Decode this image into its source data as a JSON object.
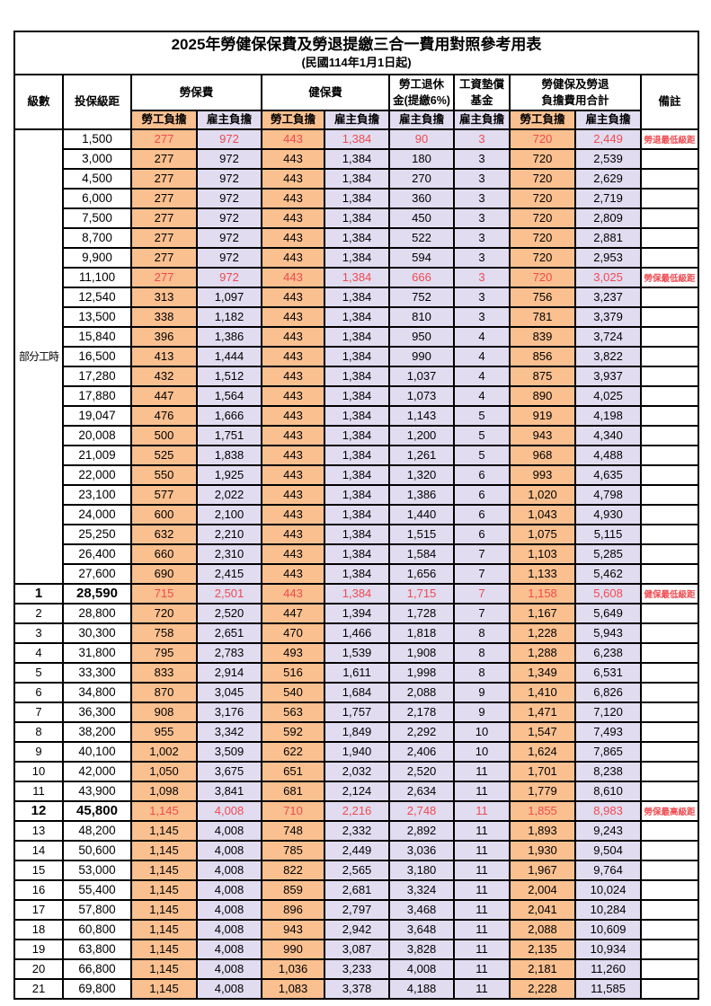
{
  "title": "2025年勞健保保費及勞退提繳三合一費用對照參考用表",
  "subtitle": "(民國114年1月1日起)",
  "colors": {
    "employee_fill_orange": "#FAC090",
    "employer_fill_lavender": "#E1DCF0",
    "highlight_red": "#EF4A4F",
    "border_black": "#000000"
  },
  "header": {
    "level": "級數",
    "bracket": "投保級距",
    "labor_insurance": "勞保費",
    "health_insurance": "健保費",
    "pension_line1": "勞工退休",
    "pension_line2": "金(提繳6%)",
    "wage_fund_line1": "工資墊償",
    "wage_fund_line2": "基金",
    "total_line1": "勞健保及勞退",
    "total_line2": "負擔費用合計",
    "remark": "備註",
    "employee": "勞工負擔",
    "employer": "雇主負擔"
  },
  "part_time": {
    "label": "部分工時",
    "rows": [
      {
        "bracket": "1,500",
        "labor_emp": "277",
        "labor_er": "972",
        "health_emp": "443",
        "health_er": "1,384",
        "pension_er": "90",
        "fund_er": "3",
        "total_emp": "720",
        "total_er": "2,449",
        "remark": "勞退最低級距",
        "red": true
      },
      {
        "bracket": "3,000",
        "labor_emp": "277",
        "labor_er": "972",
        "health_emp": "443",
        "health_er": "1,384",
        "pension_er": "180",
        "fund_er": "3",
        "total_emp": "720",
        "total_er": "2,539",
        "remark": ""
      },
      {
        "bracket": "4,500",
        "labor_emp": "277",
        "labor_er": "972",
        "health_emp": "443",
        "health_er": "1,384",
        "pension_er": "270",
        "fund_er": "3",
        "total_emp": "720",
        "total_er": "2,629",
        "remark": ""
      },
      {
        "bracket": "6,000",
        "labor_emp": "277",
        "labor_er": "972",
        "health_emp": "443",
        "health_er": "1,384",
        "pension_er": "360",
        "fund_er": "3",
        "total_emp": "720",
        "total_er": "2,719",
        "remark": ""
      },
      {
        "bracket": "7,500",
        "labor_emp": "277",
        "labor_er": "972",
        "health_emp": "443",
        "health_er": "1,384",
        "pension_er": "450",
        "fund_er": "3",
        "total_emp": "720",
        "total_er": "2,809",
        "remark": ""
      },
      {
        "bracket": "8,700",
        "labor_emp": "277",
        "labor_er": "972",
        "health_emp": "443",
        "health_er": "1,384",
        "pension_er": "522",
        "fund_er": "3",
        "total_emp": "720",
        "total_er": "2,881",
        "remark": ""
      },
      {
        "bracket": "9,900",
        "labor_emp": "277",
        "labor_er": "972",
        "health_emp": "443",
        "health_er": "1,384",
        "pension_er": "594",
        "fund_er": "3",
        "total_emp": "720",
        "total_er": "2,953",
        "remark": ""
      },
      {
        "bracket": "11,100",
        "labor_emp": "277",
        "labor_er": "972",
        "health_emp": "443",
        "health_er": "1,384",
        "pension_er": "666",
        "fund_er": "3",
        "total_emp": "720",
        "total_er": "3,025",
        "remark": "勞保最低級距",
        "red": true
      },
      {
        "bracket": "12,540",
        "labor_emp": "313",
        "labor_er": "1,097",
        "health_emp": "443",
        "health_er": "1,384",
        "pension_er": "752",
        "fund_er": "3",
        "total_emp": "756",
        "total_er": "3,237",
        "remark": ""
      },
      {
        "bracket": "13,500",
        "labor_emp": "338",
        "labor_er": "1,182",
        "health_emp": "443",
        "health_er": "1,384",
        "pension_er": "810",
        "fund_er": "3",
        "total_emp": "781",
        "total_er": "3,379",
        "remark": ""
      },
      {
        "bracket": "15,840",
        "labor_emp": "396",
        "labor_er": "1,386",
        "health_emp": "443",
        "health_er": "1,384",
        "pension_er": "950",
        "fund_er": "4",
        "total_emp": "839",
        "total_er": "3,724",
        "remark": ""
      },
      {
        "bracket": "16,500",
        "labor_emp": "413",
        "labor_er": "1,444",
        "health_emp": "443",
        "health_er": "1,384",
        "pension_er": "990",
        "fund_er": "4",
        "total_emp": "856",
        "total_er": "3,822",
        "remark": ""
      },
      {
        "bracket": "17,280",
        "labor_emp": "432",
        "labor_er": "1,512",
        "health_emp": "443",
        "health_er": "1,384",
        "pension_er": "1,037",
        "fund_er": "4",
        "total_emp": "875",
        "total_er": "3,937",
        "remark": ""
      },
      {
        "bracket": "17,880",
        "labor_emp": "447",
        "labor_er": "1,564",
        "health_emp": "443",
        "health_er": "1,384",
        "pension_er": "1,073",
        "fund_er": "4",
        "total_emp": "890",
        "total_er": "4,025",
        "remark": ""
      },
      {
        "bracket": "19,047",
        "labor_emp": "476",
        "labor_er": "1,666",
        "health_emp": "443",
        "health_er": "1,384",
        "pension_er": "1,143",
        "fund_er": "5",
        "total_emp": "919",
        "total_er": "4,198",
        "remark": ""
      },
      {
        "bracket": "20,008",
        "labor_emp": "500",
        "labor_er": "1,751",
        "health_emp": "443",
        "health_er": "1,384",
        "pension_er": "1,200",
        "fund_er": "5",
        "total_emp": "943",
        "total_er": "4,340",
        "remark": ""
      },
      {
        "bracket": "21,009",
        "labor_emp": "525",
        "labor_er": "1,838",
        "health_emp": "443",
        "health_er": "1,384",
        "pension_er": "1,261",
        "fund_er": "5",
        "total_emp": "968",
        "total_er": "4,488",
        "remark": ""
      },
      {
        "bracket": "22,000",
        "labor_emp": "550",
        "labor_er": "1,925",
        "health_emp": "443",
        "health_er": "1,384",
        "pension_er": "1,320",
        "fund_er": "6",
        "total_emp": "993",
        "total_er": "4,635",
        "remark": ""
      },
      {
        "bracket": "23,100",
        "labor_emp": "577",
        "labor_er": "2,022",
        "health_emp": "443",
        "health_er": "1,384",
        "pension_er": "1,386",
        "fund_er": "6",
        "total_emp": "1,020",
        "total_er": "4,798",
        "remark": ""
      },
      {
        "bracket": "24,000",
        "labor_emp": "600",
        "labor_er": "2,100",
        "health_emp": "443",
        "health_er": "1,384",
        "pension_er": "1,440",
        "fund_er": "6",
        "total_emp": "1,043",
        "total_er": "4,930",
        "remark": ""
      },
      {
        "bracket": "25,250",
        "labor_emp": "632",
        "labor_er": "2,210",
        "health_emp": "443",
        "health_er": "1,384",
        "pension_er": "1,515",
        "fund_er": "6",
        "total_emp": "1,075",
        "total_er": "5,115",
        "remark": ""
      },
      {
        "bracket": "26,400",
        "labor_emp": "660",
        "labor_er": "2,310",
        "health_emp": "443",
        "health_er": "1,384",
        "pension_er": "1,584",
        "fund_er": "7",
        "total_emp": "1,103",
        "total_er": "5,285",
        "remark": ""
      },
      {
        "bracket": "27,600",
        "labor_emp": "690",
        "labor_er": "2,415",
        "health_emp": "443",
        "health_er": "1,384",
        "pension_er": "1,656",
        "fund_er": "7",
        "total_emp": "1,133",
        "total_er": "5,462",
        "remark": ""
      }
    ]
  },
  "numbered": {
    "rows": [
      {
        "level": "1",
        "bracket": "28,590",
        "labor_emp": "715",
        "labor_er": "2,501",
        "health_emp": "443",
        "health_er": "1,384",
        "pension_er": "1,715",
        "fund_er": "7",
        "total_emp": "1,158",
        "total_er": "5,608",
        "remark": "健保最低級距",
        "red": true,
        "em": true
      },
      {
        "level": "2",
        "bracket": "28,800",
        "labor_emp": "720",
        "labor_er": "2,520",
        "health_emp": "447",
        "health_er": "1,394",
        "pension_er": "1,728",
        "fund_er": "7",
        "total_emp": "1,167",
        "total_er": "5,649",
        "remark": ""
      },
      {
        "level": "3",
        "bracket": "30,300",
        "labor_emp": "758",
        "labor_er": "2,651",
        "health_emp": "470",
        "health_er": "1,466",
        "pension_er": "1,818",
        "fund_er": "8",
        "total_emp": "1,228",
        "total_er": "5,943",
        "remark": ""
      },
      {
        "level": "4",
        "bracket": "31,800",
        "labor_emp": "795",
        "labor_er": "2,783",
        "health_emp": "493",
        "health_er": "1,539",
        "pension_er": "1,908",
        "fund_er": "8",
        "total_emp": "1,288",
        "total_er": "6,238",
        "remark": ""
      },
      {
        "level": "5",
        "bracket": "33,300",
        "labor_emp": "833",
        "labor_er": "2,914",
        "health_emp": "516",
        "health_er": "1,611",
        "pension_er": "1,998",
        "fund_er": "8",
        "total_emp": "1,349",
        "total_er": "6,531",
        "remark": ""
      },
      {
        "level": "6",
        "bracket": "34,800",
        "labor_emp": "870",
        "labor_er": "3,045",
        "health_emp": "540",
        "health_er": "1,684",
        "pension_er": "2,088",
        "fund_er": "9",
        "total_emp": "1,410",
        "total_er": "6,826",
        "remark": ""
      },
      {
        "level": "7",
        "bracket": "36,300",
        "labor_emp": "908",
        "labor_er": "3,176",
        "health_emp": "563",
        "health_er": "1,757",
        "pension_er": "2,178",
        "fund_er": "9",
        "total_emp": "1,471",
        "total_er": "7,120",
        "remark": ""
      },
      {
        "level": "8",
        "bracket": "38,200",
        "labor_emp": "955",
        "labor_er": "3,342",
        "health_emp": "592",
        "health_er": "1,849",
        "pension_er": "2,292",
        "fund_er": "10",
        "total_emp": "1,547",
        "total_er": "7,493",
        "remark": ""
      },
      {
        "level": "9",
        "bracket": "40,100",
        "labor_emp": "1,002",
        "labor_er": "3,509",
        "health_emp": "622",
        "health_er": "1,940",
        "pension_er": "2,406",
        "fund_er": "10",
        "total_emp": "1,624",
        "total_er": "7,865",
        "remark": ""
      },
      {
        "level": "10",
        "bracket": "42,000",
        "labor_emp": "1,050",
        "labor_er": "3,675",
        "health_emp": "651",
        "health_er": "2,032",
        "pension_er": "2,520",
        "fund_er": "11",
        "total_emp": "1,701",
        "total_er": "8,238",
        "remark": ""
      },
      {
        "level": "11",
        "bracket": "43,900",
        "labor_emp": "1,098",
        "labor_er": "3,841",
        "health_emp": "681",
        "health_er": "2,124",
        "pension_er": "2,634",
        "fund_er": "11",
        "total_emp": "1,779",
        "total_er": "8,610",
        "remark": ""
      },
      {
        "level": "12",
        "bracket": "45,800",
        "labor_emp": "1,145",
        "labor_er": "4,008",
        "health_emp": "710",
        "health_er": "2,216",
        "pension_er": "2,748",
        "fund_er": "11",
        "total_emp": "1,855",
        "total_er": "8,983",
        "remark": "勞保最高級距",
        "red": true,
        "em": true
      },
      {
        "level": "13",
        "bracket": "48,200",
        "labor_emp": "1,145",
        "labor_er": "4,008",
        "health_emp": "748",
        "health_er": "2,332",
        "pension_er": "2,892",
        "fund_er": "11",
        "total_emp": "1,893",
        "total_er": "9,243",
        "remark": ""
      },
      {
        "level": "14",
        "bracket": "50,600",
        "labor_emp": "1,145",
        "labor_er": "4,008",
        "health_emp": "785",
        "health_er": "2,449",
        "pension_er": "3,036",
        "fund_er": "11",
        "total_emp": "1,930",
        "total_er": "9,504",
        "remark": ""
      },
      {
        "level": "15",
        "bracket": "53,000",
        "labor_emp": "1,145",
        "labor_er": "4,008",
        "health_emp": "822",
        "health_er": "2,565",
        "pension_er": "3,180",
        "fund_er": "11",
        "total_emp": "1,967",
        "total_er": "9,764",
        "remark": ""
      },
      {
        "level": "16",
        "bracket": "55,400",
        "labor_emp": "1,145",
        "labor_er": "4,008",
        "health_emp": "859",
        "health_er": "2,681",
        "pension_er": "3,324",
        "fund_er": "11",
        "total_emp": "2,004",
        "total_er": "10,024",
        "remark": ""
      },
      {
        "level": "17",
        "bracket": "57,800",
        "labor_emp": "1,145",
        "labor_er": "4,008",
        "health_emp": "896",
        "health_er": "2,797",
        "pension_er": "3,468",
        "fund_er": "11",
        "total_emp": "2,041",
        "total_er": "10,284",
        "remark": ""
      },
      {
        "level": "18",
        "bracket": "60,800",
        "labor_emp": "1,145",
        "labor_er": "4,008",
        "health_emp": "943",
        "health_er": "2,942",
        "pension_er": "3,648",
        "fund_er": "11",
        "total_emp": "2,088",
        "total_er": "10,609",
        "remark": ""
      },
      {
        "level": "19",
        "bracket": "63,800",
        "labor_emp": "1,145",
        "labor_er": "4,008",
        "health_emp": "990",
        "health_er": "3,087",
        "pension_er": "3,828",
        "fund_er": "11",
        "total_emp": "2,135",
        "total_er": "10,934",
        "remark": ""
      },
      {
        "level": "20",
        "bracket": "66,800",
        "labor_emp": "1,145",
        "labor_er": "4,008",
        "health_emp": "1,036",
        "health_er": "3,233",
        "pension_er": "4,008",
        "fund_er": "11",
        "total_emp": "2,181",
        "total_er": "11,260",
        "remark": ""
      },
      {
        "level": "21",
        "bracket": "69,800",
        "labor_emp": "1,145",
        "labor_er": "4,008",
        "health_emp": "1,083",
        "health_er": "3,378",
        "pension_er": "4,188",
        "fund_er": "11",
        "total_emp": "2,228",
        "total_er": "11,585",
        "remark": ""
      }
    ]
  }
}
